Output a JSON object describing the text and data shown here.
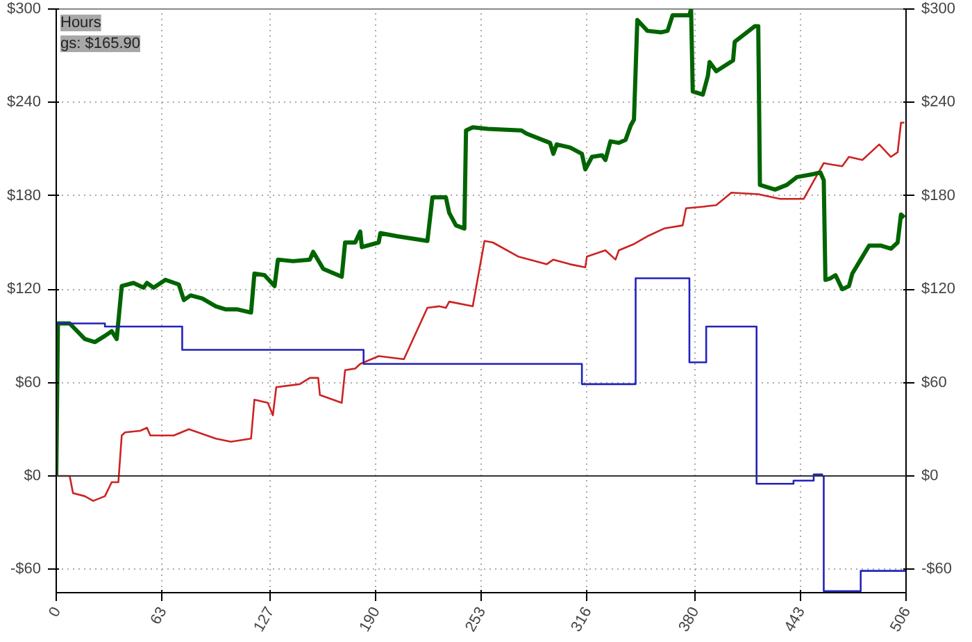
{
  "chart_data": {
    "type": "line",
    "annotations": [
      "Hours",
      "gs: $165.90"
    ],
    "xlim": [
      0,
      506
    ],
    "xticks": [
      0,
      63,
      127,
      190,
      253,
      316,
      380,
      443,
      506
    ],
    "ylim": [
      -75,
      300
    ],
    "yticks": [
      {
        "value": -60,
        "label": "-$60"
      },
      {
        "value": 0,
        "label": "$0"
      },
      {
        "value": 60,
        "label": "$60"
      },
      {
        "value": 120,
        "label": "$120"
      },
      {
        "value": 180,
        "label": "$180"
      },
      {
        "value": 240,
        "label": "$240"
      },
      {
        "value": 300,
        "label": "$300"
      }
    ],
    "y2lim": [
      -75,
      300
    ],
    "y2ticks": [
      {
        "value": -60,
        "label": "-$60"
      },
      {
        "value": 0,
        "label": "$0"
      },
      {
        "value": 60,
        "label": "$60"
      },
      {
        "value": 120,
        "label": "$120"
      },
      {
        "value": 180,
        "label": "$180"
      },
      {
        "value": 240,
        "label": "$240"
      },
      {
        "value": 300,
        "label": "$300"
      }
    ],
    "grid": true,
    "line_style": "solid",
    "marker": "none",
    "ref_lines": [
      {
        "axis": "y",
        "value": 0,
        "label": null,
        "color": "#333333"
      }
    ],
    "series": [
      {
        "color": "#cc2222",
        "x": [
          0,
          8,
          10,
          17,
          22,
          29,
          33,
          37,
          39,
          41,
          50,
          54,
          56,
          62,
          70,
          79,
          87,
          95,
          104,
          116,
          118,
          126,
          129,
          131,
          145,
          151,
          156,
          157,
          170,
          172,
          178,
          181,
          192,
          207,
          221,
          228,
          232,
          234,
          248,
          255,
          260,
          275,
          282,
          292,
          296,
          306,
          315,
          316,
          327,
          333,
          335,
          344,
          352,
          362,
          373,
          375,
          385,
          393,
          402,
          418,
          431,
          445,
          457,
          462,
          468,
          472,
          480,
          486,
          490,
          497,
          501,
          503,
          505
        ],
        "values": [
          0,
          0,
          -11,
          -13,
          -16,
          -13,
          -4,
          -4,
          26,
          28,
          29,
          31,
          26,
          26,
          26,
          30,
          27,
          24,
          22,
          24,
          49,
          47,
          39,
          57,
          59,
          63,
          63,
          52,
          47,
          68,
          69,
          72,
          77,
          75,
          108,
          109,
          108,
          112,
          109,
          151,
          150,
          141,
          139,
          136,
          139,
          136,
          134,
          141,
          145,
          139,
          145,
          149,
          154,
          159,
          161,
          172,
          173,
          174,
          182,
          181,
          178,
          178,
          201,
          200,
          199,
          205,
          203,
          209,
          213,
          205,
          208,
          227,
          227
        ]
      },
      {
        "color": "#006400",
        "x": [
          0,
          1,
          8,
          17,
          23,
          29,
          33,
          36,
          39,
          46,
          52,
          54,
          58,
          65,
          73,
          76,
          80,
          87,
          95,
          101,
          108,
          116,
          118,
          124,
          130,
          132,
          141,
          151,
          153,
          159,
          170,
          172,
          178,
          181,
          182,
          192,
          193,
          203,
          215,
          221,
          224,
          232,
          234,
          238,
          243,
          244,
          248,
          257,
          277,
          280,
          294,
          296,
          298,
          306,
          313,
          315,
          319,
          325,
          327,
          330,
          335,
          339,
          342,
          344,
          346,
          352,
          360,
          364,
          367,
          377,
          378,
          379,
          385,
          388,
          389,
          393,
          403,
          404,
          416,
          418,
          419,
          422,
          428,
          435,
          441,
          451,
          455,
          457,
          458,
          461,
          464,
          468,
          472,
          474,
          479,
          484,
          491,
          497,
          501,
          503,
          505
        ],
        "values": [
          0,
          98,
          98,
          88,
          86,
          90,
          93,
          88,
          122,
          124,
          121,
          124,
          121,
          126,
          123,
          113,
          116,
          114,
          109,
          107,
          107,
          105,
          130,
          129,
          122,
          139,
          138,
          139,
          144,
          133,
          128,
          150,
          150,
          157,
          147,
          150,
          156,
          154,
          152,
          151,
          179,
          179,
          169,
          161,
          159,
          222,
          224,
          223,
          222,
          220,
          214,
          207,
          213,
          211,
          207,
          197,
          205,
          206,
          203,
          215,
          214,
          216,
          225,
          229,
          293,
          286,
          285,
          286,
          296,
          296,
          300,
          247,
          245,
          257,
          266,
          260,
          267,
          279,
          289,
          289,
          187,
          186,
          184,
          187,
          192,
          194,
          195,
          190,
          126,
          127,
          129,
          120,
          122,
          130,
          139,
          148,
          148,
          146,
          150,
          168,
          166
        ]
      },
      {
        "type": "step",
        "color": "#2222bb",
        "x": [
          0,
          29,
          75,
          183,
          313,
          345,
          377,
          387,
          417,
          439,
          451,
          456,
          457,
          479,
          506
        ],
        "values": [
          98,
          96,
          81,
          72,
          59,
          127,
          73,
          96,
          -5,
          -3,
          1,
          0,
          -74,
          -61,
          -61
        ]
      }
    ]
  }
}
